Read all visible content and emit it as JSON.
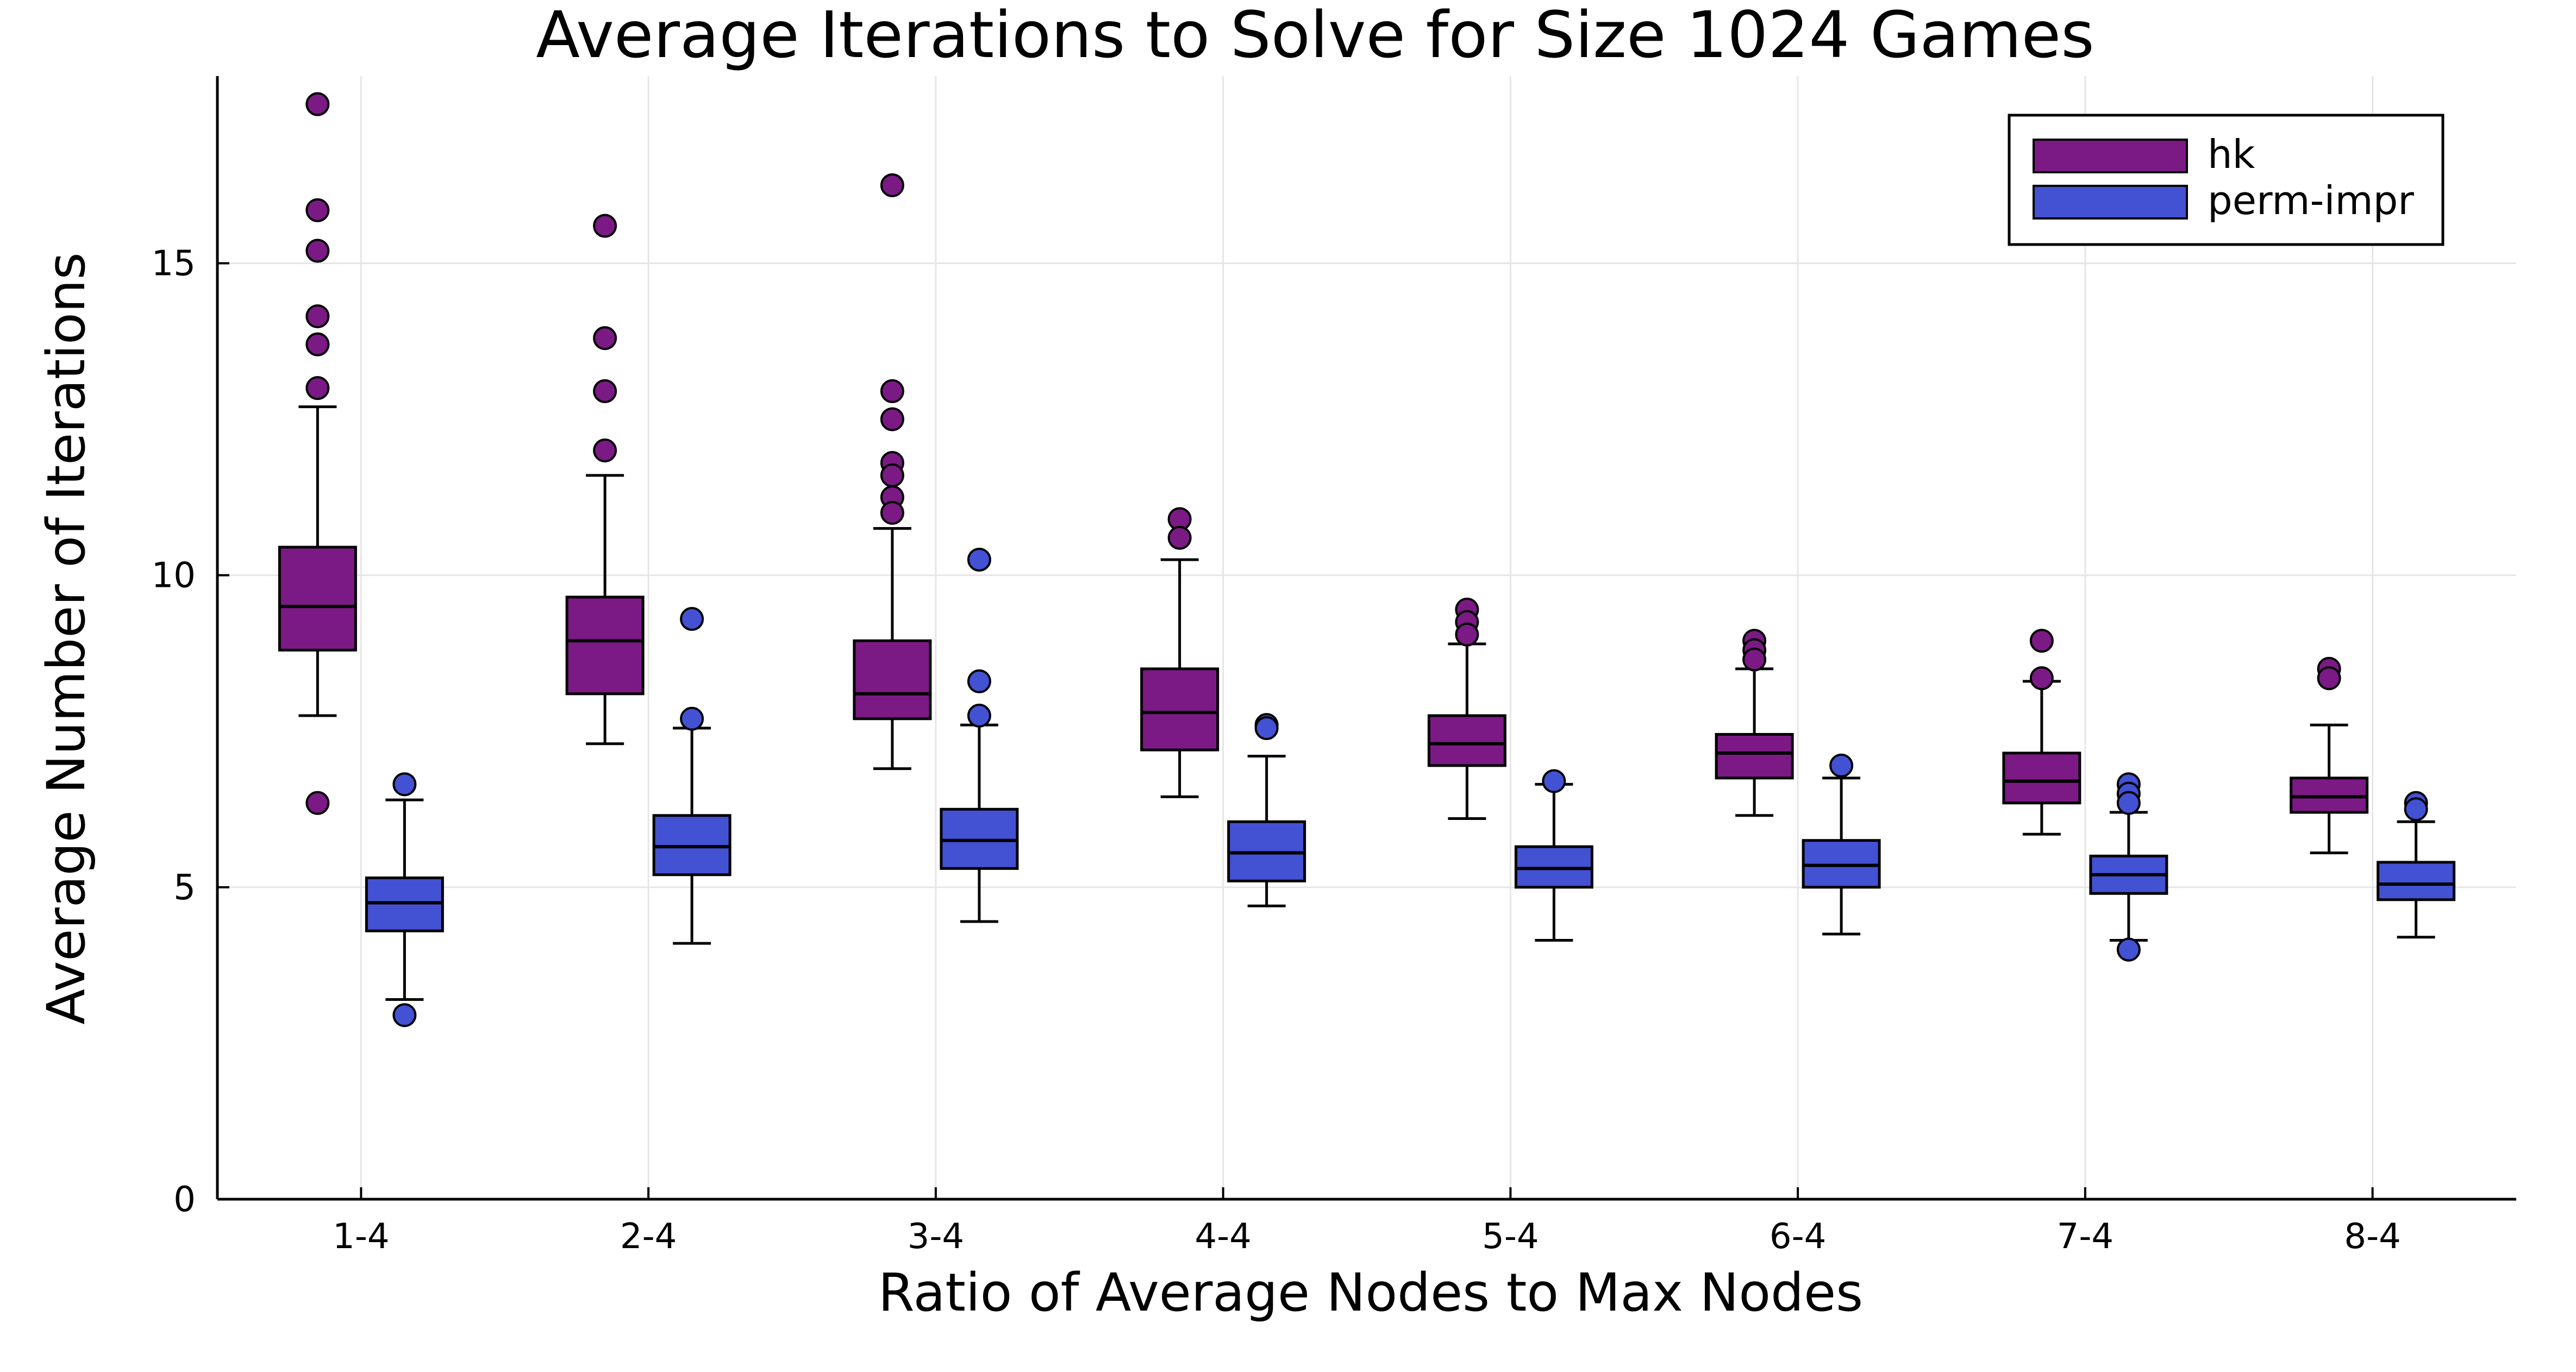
{
  "chart_data": {
    "type": "box",
    "title": "Average Iterations to Solve for Size 1024 Games",
    "xlabel": "Ratio of Average Nodes to Max Nodes",
    "ylabel": "Average Number of Iterations",
    "categories": [
      "1-4",
      "2-4",
      "3-4",
      "4-4",
      "5-4",
      "6-4",
      "7-4",
      "8-4"
    ],
    "yticks": [
      0,
      5,
      10,
      15
    ],
    "ylim": [
      0,
      18
    ],
    "grid": true,
    "legend_position": "top-right",
    "series": [
      {
        "name": "hk",
        "color": "#7B1A85",
        "boxes": [
          {
            "whisker_low": 7.75,
            "q1": 8.8,
            "median": 9.5,
            "q3": 10.45,
            "whisker_high": 12.7,
            "outliers": [
              17.55,
              15.85,
              15.2,
              14.15,
              13.7,
              13.0,
              6.35
            ]
          },
          {
            "whisker_low": 7.3,
            "q1": 8.1,
            "median": 8.95,
            "q3": 9.65,
            "whisker_high": 11.6,
            "outliers": [
              15.6,
              13.8,
              12.95,
              12.0
            ]
          },
          {
            "whisker_low": 6.9,
            "q1": 7.7,
            "median": 8.1,
            "q3": 8.95,
            "whisker_high": 10.75,
            "outliers": [
              16.25,
              12.95,
              12.5,
              11.8,
              11.6,
              11.25,
              11.0
            ]
          },
          {
            "whisker_low": 6.45,
            "q1": 7.2,
            "median": 7.8,
            "q3": 8.5,
            "whisker_high": 10.25,
            "outliers": [
              10.9,
              10.6
            ]
          },
          {
            "whisker_low": 6.1,
            "q1": 6.95,
            "median": 7.3,
            "q3": 7.75,
            "whisker_high": 8.9,
            "outliers": [
              9.45,
              9.25,
              9.05
            ]
          },
          {
            "whisker_low": 6.15,
            "q1": 6.75,
            "median": 7.15,
            "q3": 7.45,
            "whisker_high": 8.5,
            "outliers": [
              8.95,
              8.8,
              8.65
            ]
          },
          {
            "whisker_low": 5.85,
            "q1": 6.35,
            "median": 6.7,
            "q3": 7.15,
            "whisker_high": 8.3,
            "outliers": [
              8.95,
              8.35
            ]
          },
          {
            "whisker_low": 5.55,
            "q1": 6.2,
            "median": 6.45,
            "q3": 6.75,
            "whisker_high": 7.6,
            "outliers": [
              8.5,
              8.35
            ]
          }
        ]
      },
      {
        "name": "perm-impr",
        "color": "#4351D3",
        "boxes": [
          {
            "whisker_low": 3.2,
            "q1": 4.3,
            "median": 4.75,
            "q3": 5.15,
            "whisker_high": 6.4,
            "outliers": [
              6.65,
              2.95
            ]
          },
          {
            "whisker_low": 4.1,
            "q1": 5.2,
            "median": 5.65,
            "q3": 6.15,
            "whisker_high": 7.55,
            "outliers": [
              9.3,
              7.7
            ]
          },
          {
            "whisker_low": 4.45,
            "q1": 5.3,
            "median": 5.75,
            "q3": 6.25,
            "whisker_high": 7.6,
            "outliers": [
              10.25,
              8.3,
              7.75
            ]
          },
          {
            "whisker_low": 4.7,
            "q1": 5.1,
            "median": 5.55,
            "q3": 6.05,
            "whisker_high": 7.1,
            "outliers": [
              7.6,
              7.55
            ]
          },
          {
            "whisker_low": 4.15,
            "q1": 5.0,
            "median": 5.3,
            "q3": 5.65,
            "whisker_high": 6.65,
            "outliers": [
              6.7
            ]
          },
          {
            "whisker_low": 4.25,
            "q1": 5.0,
            "median": 5.35,
            "q3": 5.75,
            "whisker_high": 6.75,
            "outliers": [
              6.95
            ]
          },
          {
            "whisker_low": 4.15,
            "q1": 4.9,
            "median": 5.2,
            "q3": 5.5,
            "whisker_high": 6.2,
            "outliers": [
              6.65,
              6.5,
              6.35,
              4.0
            ]
          },
          {
            "whisker_low": 4.2,
            "q1": 4.8,
            "median": 5.05,
            "q3": 5.4,
            "whisker_high": 6.05,
            "outliers": [
              6.35,
              6.25
            ]
          }
        ]
      }
    ]
  }
}
